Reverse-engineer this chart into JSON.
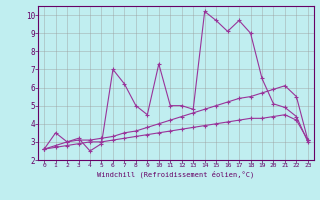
{
  "title": "",
  "xlabel": "Windchill (Refroidissement éolien,°C)",
  "ylabel": "",
  "xlim": [
    -0.5,
    23.5
  ],
  "ylim": [
    2,
    10.5
  ],
  "yticks": [
    2,
    3,
    4,
    5,
    6,
    7,
    8,
    9,
    10
  ],
  "xticks": [
    0,
    1,
    2,
    3,
    4,
    5,
    6,
    7,
    8,
    9,
    10,
    11,
    12,
    13,
    14,
    15,
    16,
    17,
    18,
    19,
    20,
    21,
    22,
    23
  ],
  "bg_color": "#c0eef0",
  "grid_color": "#999999",
  "line_color": "#993399",
  "spine_color": "#660066",
  "series1_x": [
    0,
    1,
    2,
    3,
    4,
    5,
    6,
    7,
    8,
    9,
    10,
    11,
    12,
    13,
    14,
    15,
    16,
    17,
    18,
    19,
    20,
    21,
    22,
    23
  ],
  "series1_y": [
    2.6,
    3.5,
    3.0,
    3.2,
    2.5,
    2.9,
    7.0,
    6.2,
    5.0,
    4.5,
    7.3,
    5.0,
    5.0,
    4.8,
    10.2,
    9.7,
    9.1,
    9.7,
    9.0,
    6.5,
    5.1,
    4.9,
    4.4,
    3.0
  ],
  "series2_x": [
    0,
    1,
    2,
    3,
    4,
    5,
    6,
    7,
    8,
    9,
    10,
    11,
    12,
    13,
    14,
    15,
    16,
    17,
    18,
    19,
    20,
    21,
    22,
    23
  ],
  "series2_y": [
    2.6,
    2.8,
    3.0,
    3.1,
    3.1,
    3.2,
    3.3,
    3.5,
    3.6,
    3.8,
    4.0,
    4.2,
    4.4,
    4.6,
    4.8,
    5.0,
    5.2,
    5.4,
    5.5,
    5.7,
    5.9,
    6.1,
    5.5,
    3.1
  ],
  "series3_x": [
    0,
    1,
    2,
    3,
    4,
    5,
    6,
    7,
    8,
    9,
    10,
    11,
    12,
    13,
    14,
    15,
    16,
    17,
    18,
    19,
    20,
    21,
    22,
    23
  ],
  "series3_y": [
    2.6,
    2.7,
    2.8,
    2.9,
    3.0,
    3.0,
    3.1,
    3.2,
    3.3,
    3.4,
    3.5,
    3.6,
    3.7,
    3.8,
    3.9,
    4.0,
    4.1,
    4.2,
    4.3,
    4.3,
    4.4,
    4.5,
    4.2,
    3.1
  ]
}
